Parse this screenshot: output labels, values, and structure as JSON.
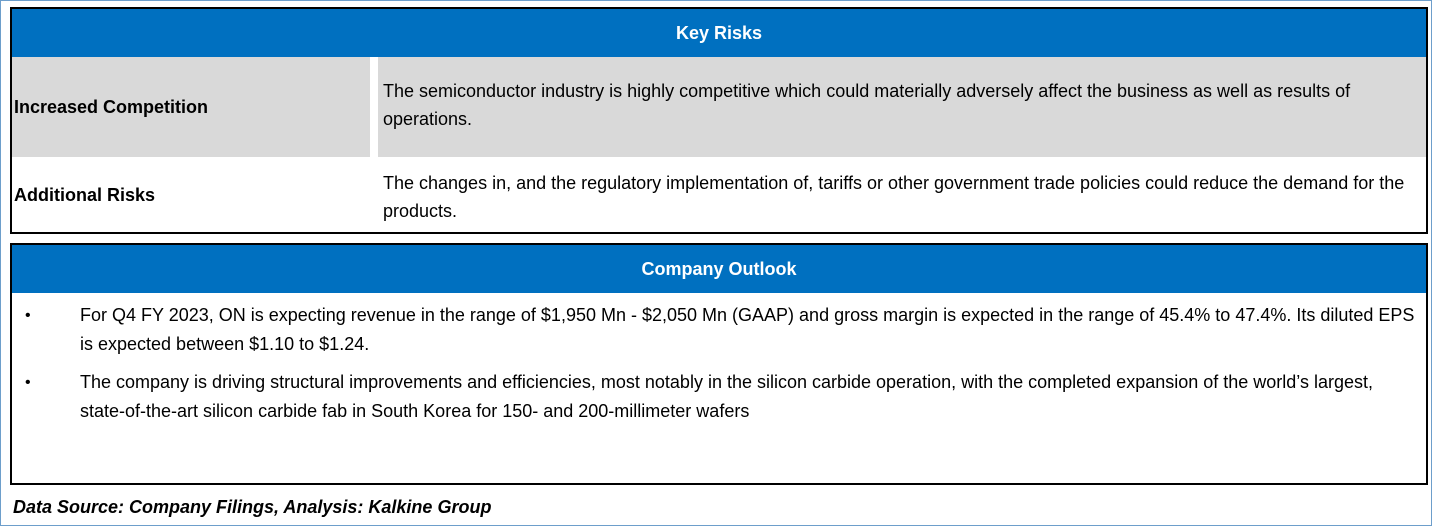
{
  "key_risks": {
    "title": "Key Risks",
    "rows": [
      {
        "label": "Increased Competition",
        "description": "The semiconductor industry is highly competitive which could materially adversely affect the business as well as results of operations."
      },
      {
        "label": "Additional Risks",
        "description": "The changes in, and the regulatory implementation of, tariffs or other government trade policies could reduce the demand for the products."
      }
    ]
  },
  "company_outlook": {
    "title": "Company Outlook",
    "bullet_glyph": "•",
    "items": [
      "For Q4 FY 2023, ON is expecting revenue in the range of $1,950 Mn - $2,050 Mn (GAAP) and gross margin is expected in the range of 45.4% to 47.4%. Its diluted EPS is expected between $1.10 to $1.24.",
      "The company is driving structural improvements and efficiencies, most notably in the silicon carbide operation, with the completed expansion of the world’s largest, state-of-the-art silicon carbide fab in South Korea for 150- and 200-millimeter wafers"
    ]
  },
  "source": "Data Source: Company Filings, Analysis: Kalkine Group",
  "colors": {
    "header_bg": "#0070c0",
    "shaded_row": "#d9d9d9",
    "frame": "#6d9ecb"
  }
}
